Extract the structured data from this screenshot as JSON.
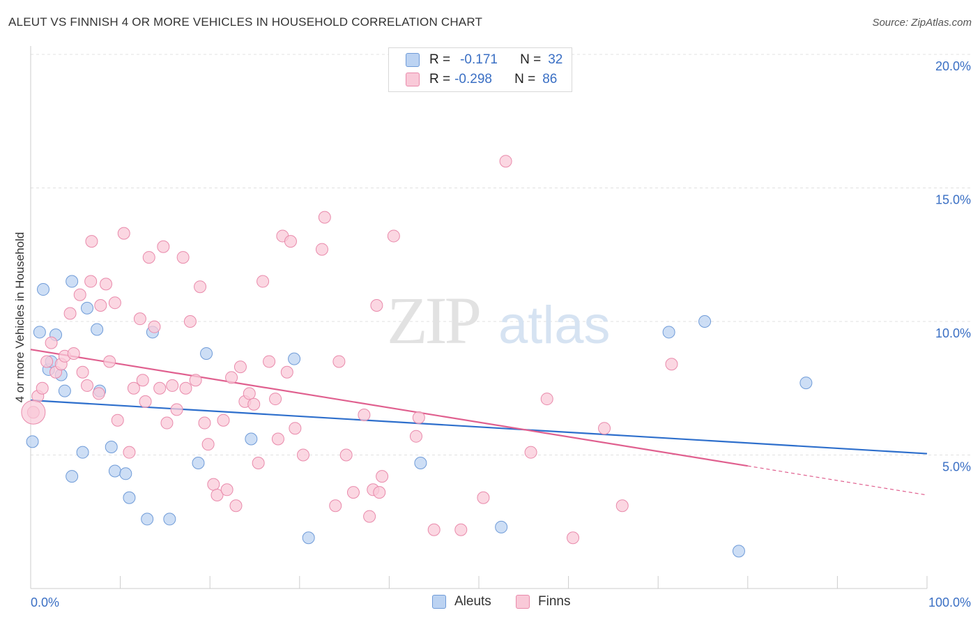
{
  "title": "ALEUT VS FINNISH 4 OR MORE VEHICLES IN HOUSEHOLD CORRELATION CHART",
  "source": "Source: ZipAtlas.com",
  "watermark": {
    "zip": "ZIP",
    "atlas": "atlas"
  },
  "legend": {
    "rows": [
      {
        "r_label": "R =",
        "r_value": "-0.171",
        "n_label": "N =",
        "n_value": "32"
      },
      {
        "r_label": "R =",
        "r_value": "-0.298",
        "n_label": "N =",
        "n_value": "86"
      }
    ]
  },
  "bottom_legend": {
    "aleuts": "Aleuts",
    "finns": "Finns"
  },
  "colors": {
    "aleuts_fill": "#bcd3f2",
    "aleuts_stroke": "#6f9bd8",
    "aleuts_line": "#2e6fcc",
    "finns_fill": "#f9c9d8",
    "finns_stroke": "#e98aab",
    "finns_line": "#e0608f",
    "tick_label": "#3a6fc4",
    "grid": "#e0e0e0"
  },
  "chart_data": {
    "type": "scatter",
    "xlabel": "",
    "ylabel": "4 or more Vehicles in Household",
    "xlim": [
      0,
      100
    ],
    "ylim": [
      0,
      20
    ],
    "x_tick_labels": [
      "0.0%",
      "100.0%"
    ],
    "y_ticks": [
      5,
      10,
      15,
      20
    ],
    "y_tick_labels": [
      "5.0%",
      "10.0%",
      "15.0%",
      "20.0%"
    ],
    "grid": true,
    "legend_position": "top-center",
    "series": [
      {
        "name": "Aleuts",
        "r": -0.171,
        "n": 32,
        "trend": {
          "x": [
            0,
            100
          ],
          "y": [
            7.05,
            5.05
          ],
          "dashed_from": null
        },
        "points": [
          [
            0.2,
            5.5
          ],
          [
            1.0,
            9.6
          ],
          [
            1.4,
            11.2
          ],
          [
            2.0,
            8.2
          ],
          [
            2.3,
            8.5
          ],
          [
            2.8,
            9.5
          ],
          [
            3.4,
            8.0
          ],
          [
            3.8,
            7.4
          ],
          [
            4.6,
            4.2
          ],
          [
            4.6,
            11.5
          ],
          [
            5.8,
            5.1
          ],
          [
            6.3,
            10.5
          ],
          [
            7.4,
            9.7
          ],
          [
            7.7,
            7.4
          ],
          [
            9.0,
            5.3
          ],
          [
            9.4,
            4.4
          ],
          [
            10.6,
            4.3
          ],
          [
            11.0,
            3.4
          ],
          [
            13.0,
            2.6
          ],
          [
            13.6,
            9.6
          ],
          [
            15.5,
            2.6
          ],
          [
            18.7,
            4.7
          ],
          [
            19.6,
            8.8
          ],
          [
            24.6,
            5.6
          ],
          [
            29.4,
            8.6
          ],
          [
            31.0,
            1.9
          ],
          [
            43.5,
            4.7
          ],
          [
            52.5,
            2.3
          ],
          [
            71.2,
            9.6
          ],
          [
            75.2,
            10.0
          ],
          [
            79.0,
            1.4
          ],
          [
            86.5,
            7.7
          ]
        ]
      },
      {
        "name": "Finns",
        "r": -0.298,
        "n": 86,
        "trend": {
          "x": [
            0,
            100
          ],
          "y": [
            8.95,
            3.5
          ],
          "dashed_from": 80
        },
        "points": [
          [
            0.3,
            6.6
          ],
          [
            0.8,
            7.2
          ],
          [
            1.3,
            7.5
          ],
          [
            1.8,
            8.5
          ],
          [
            2.3,
            9.2
          ],
          [
            2.8,
            8.1
          ],
          [
            3.4,
            8.4
          ],
          [
            3.8,
            8.7
          ],
          [
            4.4,
            10.3
          ],
          [
            4.8,
            8.8
          ],
          [
            5.5,
            11.0
          ],
          [
            5.8,
            8.1
          ],
          [
            6.3,
            7.6
          ],
          [
            6.8,
            13.0
          ],
          [
            7.6,
            7.3
          ],
          [
            7.8,
            10.6
          ],
          [
            8.4,
            11.4
          ],
          [
            8.8,
            8.5
          ],
          [
            9.4,
            10.7
          ],
          [
            9.7,
            6.3
          ],
          [
            10.4,
            13.3
          ],
          [
            11.0,
            5.1
          ],
          [
            11.5,
            7.5
          ],
          [
            12.2,
            10.1
          ],
          [
            12.5,
            7.8
          ],
          [
            12.8,
            7.0
          ],
          [
            13.2,
            12.4
          ],
          [
            13.8,
            9.8
          ],
          [
            14.4,
            7.5
          ],
          [
            14.8,
            12.8
          ],
          [
            15.2,
            6.2
          ],
          [
            15.8,
            7.6
          ],
          [
            16.3,
            6.7
          ],
          [
            17.0,
            12.4
          ],
          [
            17.3,
            7.5
          ],
          [
            17.8,
            10.0
          ],
          [
            18.4,
            7.8
          ],
          [
            18.9,
            11.3
          ],
          [
            19.4,
            6.2
          ],
          [
            19.8,
            5.4
          ],
          [
            20.4,
            3.9
          ],
          [
            20.8,
            3.5
          ],
          [
            21.5,
            6.3
          ],
          [
            21.9,
            3.7
          ],
          [
            22.4,
            7.9
          ],
          [
            22.9,
            3.1
          ],
          [
            23.4,
            8.3
          ],
          [
            23.9,
            7.0
          ],
          [
            24.4,
            7.3
          ],
          [
            24.9,
            6.9
          ],
          [
            25.4,
            4.7
          ],
          [
            25.9,
            11.5
          ],
          [
            26.6,
            8.5
          ],
          [
            27.3,
            7.1
          ],
          [
            27.6,
            5.6
          ],
          [
            28.1,
            13.2
          ],
          [
            28.6,
            8.1
          ],
          [
            29.0,
            13.0
          ],
          [
            29.5,
            6.0
          ],
          [
            30.4,
            5.0
          ],
          [
            32.5,
            12.7
          ],
          [
            32.8,
            13.9
          ],
          [
            34.0,
            3.1
          ],
          [
            34.4,
            8.5
          ],
          [
            35.2,
            5.0
          ],
          [
            36.0,
            3.6
          ],
          [
            37.2,
            6.5
          ],
          [
            37.8,
            2.7
          ],
          [
            38.2,
            3.7
          ],
          [
            38.6,
            10.6
          ],
          [
            38.9,
            3.6
          ],
          [
            39.2,
            4.2
          ],
          [
            43.0,
            5.7
          ],
          [
            43.3,
            6.4
          ],
          [
            45.0,
            2.2
          ],
          [
            48.0,
            2.2
          ],
          [
            50.5,
            3.4
          ],
          [
            53.0,
            16.0
          ],
          [
            55.8,
            5.1
          ],
          [
            57.6,
            7.1
          ],
          [
            60.5,
            1.9
          ],
          [
            64.0,
            6.0
          ],
          [
            66.0,
            3.1
          ],
          [
            71.5,
            8.4
          ],
          [
            6.7,
            11.5
          ],
          [
            40.5,
            13.2
          ]
        ]
      }
    ]
  }
}
